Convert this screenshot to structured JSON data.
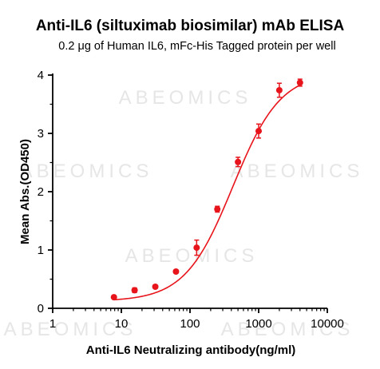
{
  "chart_data": {
    "type": "scatter",
    "title": "Anti-IL6 (siltuximab biosimilar) mAb ELISA",
    "subtitle": "0.2 μg of Human IL6, mFc-His Tagged protein per well",
    "xlabel": "Anti-IL6 Neutralizing antibody(ng/ml)",
    "ylabel": "Mean Abs.(OD450)",
    "x_scale": "log",
    "xlim": [
      1,
      10000
    ],
    "ylim": [
      0,
      4
    ],
    "x_ticks": [
      "1",
      "10",
      "100",
      "1000",
      "10000"
    ],
    "y_ticks": [
      "0",
      "1",
      "2",
      "3",
      "4"
    ],
    "watermark": "ABEOMICS",
    "series": [
      {
        "color": "#e8141b",
        "x": [
          7.8,
          15.6,
          31.25,
          62.5,
          125,
          250,
          500,
          1000,
          2000,
          4000
        ],
        "y": [
          0.19,
          0.31,
          0.37,
          0.63,
          1.04,
          1.7,
          2.51,
          3.04,
          3.74,
          3.87
        ],
        "err": [
          0.02,
          0.04,
          0.03,
          0.03,
          0.13,
          0.05,
          0.08,
          0.12,
          0.12,
          0.06
        ],
        "fit": "4PL",
        "fit_params": {
          "bottom": 0.12,
          "top": 4.05,
          "ec50": 420,
          "hill": 1.25
        }
      }
    ]
  }
}
